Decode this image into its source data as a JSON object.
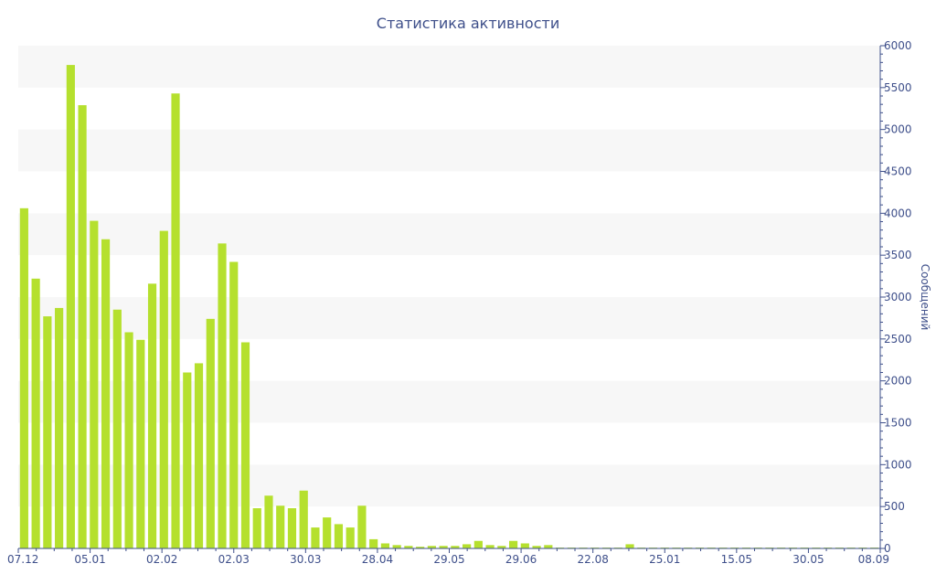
{
  "chart_data": {
    "type": "bar",
    "title": "Статистика активности",
    "xlabel": "",
    "ylabel": "Сообщений",
    "ylim": [
      0,
      6000
    ],
    "y_axis_side": "right",
    "yticks": [
      0,
      500,
      1000,
      1500,
      2000,
      2500,
      3000,
      3500,
      4000,
      4500,
      5000,
      5500,
      6000
    ],
    "x_tick_labels": [
      "07.12",
      "05.01",
      "02.02",
      "02.03",
      "30.03",
      "28.04",
      "29.05",
      "29.06",
      "22.08",
      "25.01",
      "15.05",
      "30.05",
      "08.09"
    ],
    "grid": "alternating horizontal bands",
    "colors": {
      "bar": "#b5e02e",
      "axis": "#3e4f8a",
      "band": "#f7f7f7"
    },
    "values": [
      4060,
      3220,
      2770,
      2870,
      5770,
      5290,
      3910,
      3690,
      2850,
      2580,
      2490,
      3160,
      3790,
      5430,
      2100,
      2210,
      2740,
      3640,
      3420,
      2460,
      480,
      630,
      510,
      480,
      690,
      250,
      370,
      290,
      250,
      510,
      110,
      60,
      40,
      30,
      20,
      30,
      30,
      30,
      50,
      90,
      40,
      30,
      90,
      60,
      30,
      40,
      10,
      10,
      10,
      10,
      10,
      10,
      50,
      10,
      10,
      10,
      10,
      10,
      10,
      10,
      10,
      10,
      10,
      10,
      10,
      10,
      10,
      10,
      10,
      10,
      10,
      10,
      10,
      10
    ]
  }
}
